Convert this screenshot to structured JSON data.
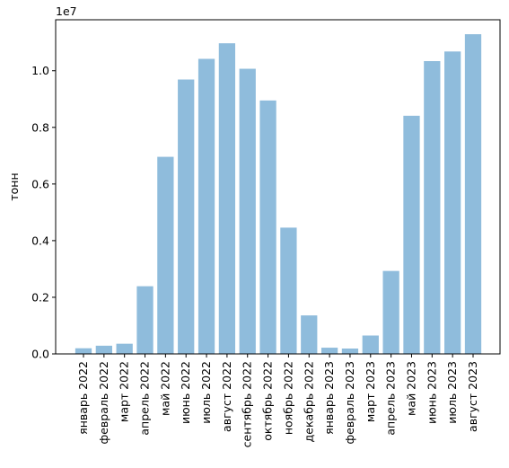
{
  "chart_data": {
    "type": "bar",
    "title": "",
    "xlabel": "",
    "ylabel": "тонн",
    "exponent_label": "1e7",
    "ylim": [
      0,
      11800000
    ],
    "yticks": [
      0,
      2000000,
      4000000,
      6000000,
      8000000,
      10000000
    ],
    "ytick_labels": [
      "0.0",
      "0.2",
      "0.4",
      "0.6",
      "0.8",
      "1.0"
    ],
    "grid": false,
    "bar_color": "#8fbcdc",
    "categories": [
      "январь 2022",
      "февраль 2022",
      "март 2022",
      "апрель 2022",
      "май 2022",
      "июнь 2022",
      "июль 2022",
      "август 2022",
      "сентябрь 2022",
      "октябрь 2022",
      "ноябрь 2022",
      "декабрь 2022",
      "январь 2023",
      "февраль 2023",
      "март 2023",
      "апрель 2023",
      "май 2023",
      "июнь 2023",
      "июль 2023",
      "август 2023"
    ],
    "values": [
      200000,
      290000,
      360000,
      2390000,
      6960000,
      9690000,
      10420000,
      10970000,
      10070000,
      8950000,
      4460000,
      1360000,
      220000,
      190000,
      650000,
      2930000,
      8410000,
      10340000,
      10680000,
      11290000
    ]
  }
}
